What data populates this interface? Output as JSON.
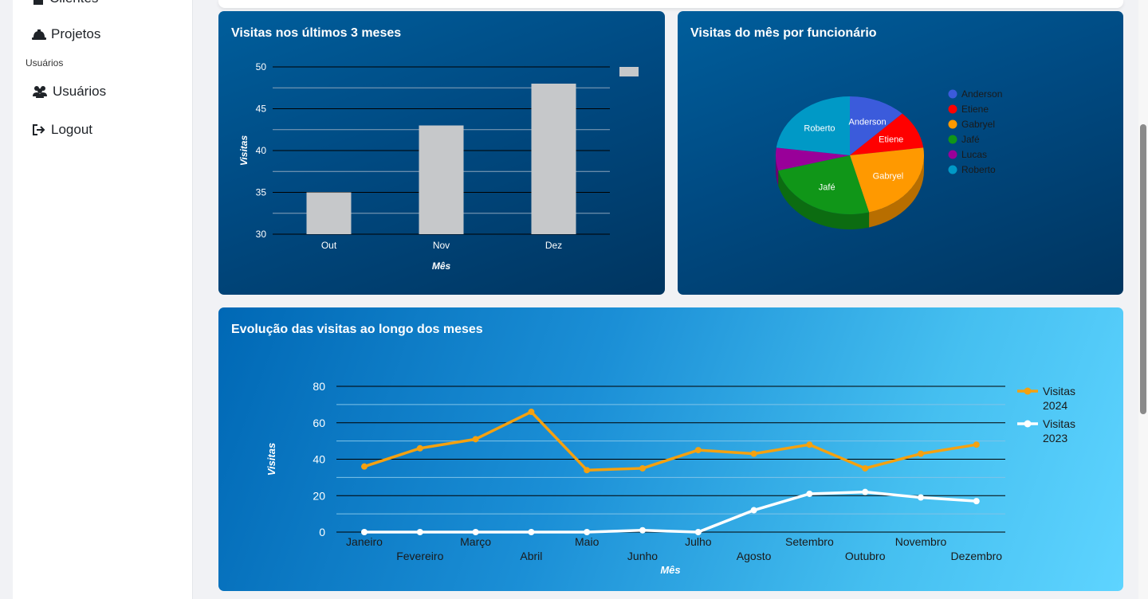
{
  "sidebar": {
    "items": [
      {
        "label": "Clientes",
        "icon": "building-icon"
      },
      {
        "label": "Projetos",
        "icon": "hard-hat-icon"
      },
      {
        "label": "Usuários",
        "icon": "users-icon"
      },
      {
        "label": "Logout",
        "icon": "logout-icon"
      }
    ],
    "section_usuarios": "Usuários"
  },
  "colors": {
    "bar": "#c6c8ca",
    "line_2024": "#f5a10f",
    "line_2023": "#ffffff",
    "anderson": "#3b5bdb",
    "etiene": "#ff0000",
    "gabryel": "#ff9900",
    "jafe": "#109618",
    "lucas": "#990099",
    "roberto": "#0099c6"
  },
  "chart_data": [
    {
      "type": "bar",
      "title": "Visitas nos últimos 3 meses",
      "categories": [
        "Out",
        "Nov",
        "Dez"
      ],
      "values": [
        35,
        43,
        48
      ],
      "xlabel": "Mês",
      "ylabel": "Visitas",
      "ylim": [
        30,
        50
      ],
      "yticks": [
        30,
        35,
        40,
        45,
        50
      ],
      "legend": "top-right",
      "grid": true
    },
    {
      "type": "pie",
      "title": "Visitas do mês por funcionário",
      "labels": [
        "Anderson",
        "Etiene",
        "Gabryel",
        "Jafé",
        "Lucas",
        "Roberto"
      ],
      "values": [
        6,
        5,
        11,
        12,
        3,
        11
      ],
      "legend": "right"
    },
    {
      "type": "line",
      "title": "Evolução das visitas ao longo dos meses",
      "x": [
        "Janeiro",
        "Fevereiro",
        "Março",
        "Abril",
        "Maio",
        "Junho",
        "Julho",
        "Agosto",
        "Setembro",
        "Outubro",
        "Novembro",
        "Dezembro"
      ],
      "series": [
        {
          "name": "Visitas 2024",
          "values": [
            36,
            46,
            51,
            66,
            34,
            35,
            45,
            43,
            48,
            35,
            43,
            48
          ]
        },
        {
          "name": "Visitas 2023",
          "values": [
            0,
            0,
            0,
            0,
            0,
            1,
            0,
            12,
            21,
            22,
            19,
            17
          ]
        }
      ],
      "xlabel": "Mês",
      "ylabel": "Visitas",
      "ylim": [
        0,
        80
      ],
      "yticks": [
        0,
        20,
        40,
        60,
        80
      ],
      "legend": "right",
      "grid": true
    }
  ]
}
